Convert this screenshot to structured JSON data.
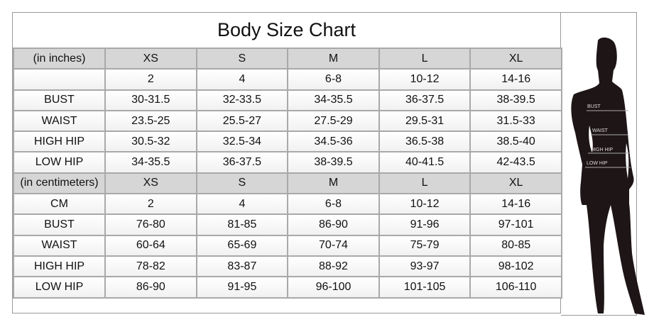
{
  "title": "Body Size Chart",
  "inches": {
    "header": [
      "(in inches)",
      "XS",
      "S",
      "M",
      "L",
      "XL"
    ],
    "rows": [
      [
        "",
        "2",
        "4",
        "6-8",
        "10-12",
        "14-16"
      ],
      [
        "BUST",
        "30-31.5",
        "32-33.5",
        "34-35.5",
        "36-37.5",
        "38-39.5"
      ],
      [
        "WAIST",
        "23.5-25",
        "25.5-27",
        "27.5-29",
        "29.5-31",
        "31.5-33"
      ],
      [
        "HIGH HIP",
        "30.5-32",
        "32.5-34",
        "34.5-36",
        "36.5-38",
        "38.5-40"
      ],
      [
        "LOW HIP",
        "34-35.5",
        "36-37.5",
        "38-39.5",
        "40-41.5",
        "42-43.5"
      ]
    ]
  },
  "centimeters": {
    "header": [
      "(in centimeters)",
      "XS",
      "S",
      "M",
      "L",
      "XL"
    ],
    "rows": [
      [
        "CM",
        "2",
        "4",
        "6-8",
        "10-12",
        "14-16"
      ],
      [
        "BUST",
        "76-80",
        "81-85",
        "86-90",
        "91-96",
        "97-101"
      ],
      [
        "WAIST",
        "60-64",
        "65-69",
        "70-74",
        "75-79",
        "80-85"
      ],
      [
        "HIGH HIP",
        "78-82",
        "83-87",
        "88-92",
        "93-97",
        "98-102"
      ],
      [
        "LOW HIP",
        "86-90",
        "91-95",
        "96-100",
        "101-105",
        "106-110"
      ]
    ]
  },
  "figure_labels": [
    "BUST",
    "WAIST",
    "HIGH HIP",
    "LOW HIP"
  ]
}
